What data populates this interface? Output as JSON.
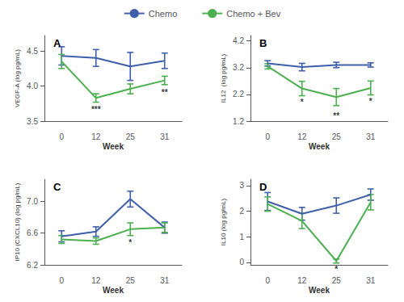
{
  "chart_data": [
    {
      "type": "line",
      "title": "A",
      "xlabel": "Week",
      "ylabel": "VEGF-A (log pg/mL)",
      "categories": [
        "0",
        "12",
        "25",
        "31"
      ],
      "series": [
        {
          "name": "Chemo",
          "color": "#3F5FAA",
          "values": [
            4.43,
            4.4,
            4.28,
            4.36
          ],
          "errors": [
            0.13,
            0.12,
            0.2,
            0.11
          ]
        },
        {
          "name": "Chemo + Bev",
          "color": "#4CAF50",
          "values": [
            4.35,
            3.83,
            3.96,
            4.08
          ],
          "errors": [
            0.1,
            0.06,
            0.07,
            0.06
          ]
        }
      ],
      "ylim": [
        3.5,
        4.72
      ],
      "yticks": [
        3.5,
        {
          "value": 4,
          "label": "4.0"
        },
        4.5
      ],
      "annotations": [
        {
          "text": "***",
          "x": "12",
          "y": 3.72
        },
        {
          "text": "**",
          "x": "31",
          "y": 3.97
        }
      ],
      "grid": false,
      "legend": "top"
    },
    {
      "type": "line",
      "title": "B",
      "xlabel": "Week",
      "ylabel": "IL12  (log pg/mL)",
      "categories": [
        "0",
        "12",
        "25",
        "31"
      ],
      "series": [
        {
          "name": "Chemo",
          "color": "#3F5FAA",
          "values": [
            3.36,
            3.22,
            3.3,
            3.3
          ],
          "errors": [
            0.1,
            0.14,
            0.1,
            0.08
          ]
        },
        {
          "name": "Chemo + Bev",
          "color": "#4CAF50",
          "values": [
            3.25,
            2.42,
            2.1,
            2.44
          ],
          "errors": [
            0.1,
            0.27,
            0.32,
            0.26
          ]
        }
      ],
      "ylim": [
        1.2,
        4.4
      ],
      "yticks": [
        1.2,
        2.2,
        3.2,
        4.2
      ],
      "annotations": [
        {
          "text": "*",
          "x": "12",
          "y": 2.05
        },
        {
          "text": "**",
          "x": "25",
          "y": 1.55
        },
        {
          "text": "*",
          "x": "31",
          "y": 2.08
        }
      ],
      "grid": false,
      "legend": "top"
    },
    {
      "type": "line",
      "title": "C",
      "xlabel": "Week",
      "ylabel": "IP10 (CXCL10) (log pg/mL)",
      "categories": [
        "0",
        "12",
        "25",
        "31"
      ],
      "series": [
        {
          "name": "Chemo",
          "color": "#3F5FAA",
          "values": [
            6.56,
            6.62,
            7.03,
            6.67
          ],
          "errors": [
            0.07,
            0.06,
            0.1,
            0.07
          ]
        },
        {
          "name": "Chemo + Bev",
          "color": "#4CAF50",
          "values": [
            6.52,
            6.5,
            6.65,
            6.67
          ],
          "errors": [
            0.05,
            0.04,
            0.08,
            0.06
          ]
        }
      ],
      "ylim": [
        6.2,
        7.28
      ],
      "yticks": [
        6.2,
        6.6,
        {
          "value": 7,
          "label": "7.0"
        }
      ],
      "annotations": [
        {
          "text": "*",
          "x": "25",
          "y": 6.53
        }
      ],
      "grid": false,
      "legend": "top"
    },
    {
      "type": "line",
      "title": "D",
      "xlabel": "Week",
      "ylabel": "IL10 (log pg/mL)",
      "categories": [
        "0",
        "12",
        "25",
        "31"
      ],
      "series": [
        {
          "name": "Chemo",
          "color": "#3F5FAA",
          "values": [
            2.38,
            1.9,
            2.22,
            2.65
          ],
          "errors": [
            0.35,
            0.25,
            0.3,
            0.22
          ]
        },
        {
          "name": "Chemo + Bev",
          "color": "#4CAF50",
          "values": [
            2.28,
            1.62,
            0.05,
            2.35
          ],
          "errors": [
            0.28,
            0.3,
            0.08,
            0.3
          ]
        }
      ],
      "ylim": [
        -0.1,
        3.25
      ],
      "yticks": [
        0,
        1,
        2,
        3
      ],
      "annotations": [
        {
          "text": "*",
          "x": "25",
          "y": -0.1
        }
      ],
      "grid": false,
      "legend": "top"
    }
  ]
}
